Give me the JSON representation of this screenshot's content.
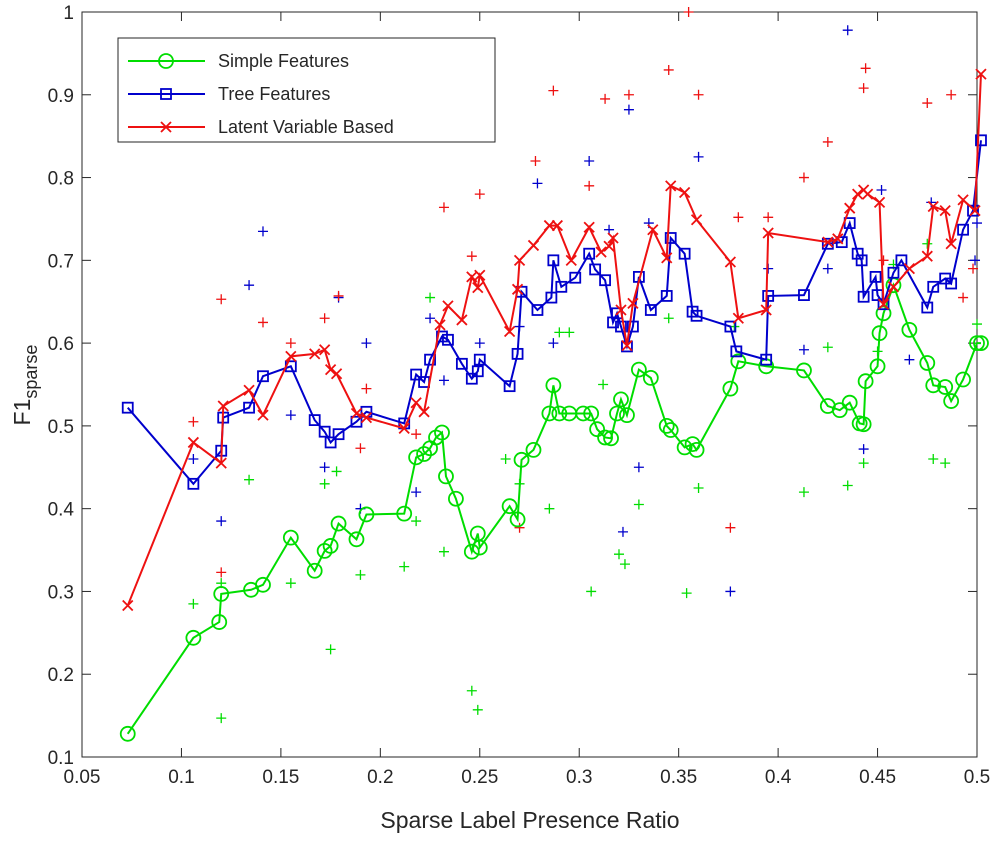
{
  "chart_data": {
    "type": "line",
    "xlabel": "Sparse Label Presence Ratio",
    "ylabel": {
      "text": "F1",
      "subscript": "sparse"
    },
    "xlim": [
      0.05,
      0.5
    ],
    "ylim": [
      0.1,
      1
    ],
    "xticks": [
      0.05,
      0.1,
      0.15,
      0.2,
      0.25,
      0.3,
      0.35,
      0.4,
      0.45,
      0.5
    ],
    "yticks": [
      0.1,
      0.2,
      0.3,
      0.4,
      0.5,
      0.6,
      0.7,
      0.8,
      0.9,
      1
    ],
    "legend": "top-left",
    "series": [
      {
        "name": "Simple Features",
        "color": "#00dd00",
        "marker": "circle",
        "x": [
          0.073,
          0.106,
          0.119,
          0.12,
          0.135,
          0.141,
          0.155,
          0.167,
          0.172,
          0.175,
          0.179,
          0.188,
          0.193,
          0.212,
          0.218,
          0.222,
          0.225,
          0.228,
          0.231,
          0.233,
          0.238,
          0.246,
          0.249,
          0.25,
          0.265,
          0.269,
          0.271,
          0.277,
          0.285,
          0.287,
          0.29,
          0.295,
          0.302,
          0.306,
          0.309,
          0.313,
          0.316,
          0.319,
          0.321,
          0.324,
          0.33,
          0.336,
          0.344,
          0.346,
          0.353,
          0.357,
          0.359,
          0.376,
          0.38,
          0.394,
          0.413,
          0.425,
          0.431,
          0.436,
          0.441,
          0.443,
          0.444,
          0.45,
          0.451,
          0.453,
          0.458,
          0.466,
          0.475,
          0.478,
          0.484,
          0.487,
          0.493,
          0.5,
          0.502
        ],
        "values": [
          0.128,
          0.244,
          0.263,
          0.297,
          0.302,
          0.308,
          0.365,
          0.325,
          0.349,
          0.355,
          0.382,
          0.363,
          0.393,
          0.394,
          0.462,
          0.466,
          0.473,
          0.486,
          0.492,
          0.439,
          0.412,
          0.348,
          0.37,
          0.353,
          0.403,
          0.387,
          0.459,
          0.471,
          0.515,
          0.549,
          0.515,
          0.515,
          0.515,
          0.515,
          0.496,
          0.486,
          0.485,
          0.515,
          0.532,
          0.513,
          0.568,
          0.558,
          0.5,
          0.495,
          0.474,
          0.478,
          0.471,
          0.545,
          0.578,
          0.572,
          0.567,
          0.524,
          0.519,
          0.528,
          0.503,
          0.502,
          0.554,
          0.572,
          0.612,
          0.636,
          0.67,
          0.616,
          0.576,
          0.549,
          0.547,
          0.53,
          0.556,
          0.6,
          0.6
        ]
      },
      {
        "name": "Tree Features",
        "color": "#0000cc",
        "marker": "square",
        "x": [
          0.073,
          0.106,
          0.12,
          0.121,
          0.134,
          0.141,
          0.155,
          0.167,
          0.172,
          0.175,
          0.179,
          0.188,
          0.193,
          0.212,
          0.218,
          0.222,
          0.225,
          0.231,
          0.234,
          0.241,
          0.246,
          0.249,
          0.25,
          0.265,
          0.269,
          0.271,
          0.279,
          0.286,
          0.287,
          0.291,
          0.298,
          0.305,
          0.308,
          0.313,
          0.317,
          0.319,
          0.321,
          0.324,
          0.327,
          0.33,
          0.336,
          0.344,
          0.346,
          0.353,
          0.357,
          0.359,
          0.376,
          0.379,
          0.394,
          0.395,
          0.413,
          0.425,
          0.432,
          0.436,
          0.44,
          0.442,
          0.443,
          0.449,
          0.45,
          0.453,
          0.458,
          0.462,
          0.475,
          0.478,
          0.484,
          0.487,
          0.493,
          0.498,
          0.502
        ],
        "values": [
          0.522,
          0.43,
          0.47,
          0.51,
          0.522,
          0.56,
          0.572,
          0.507,
          0.493,
          0.48,
          0.49,
          0.505,
          0.517,
          0.503,
          0.562,
          0.553,
          0.58,
          0.608,
          0.604,
          0.575,
          0.557,
          0.566,
          0.58,
          0.548,
          0.587,
          0.662,
          0.64,
          0.655,
          0.7,
          0.668,
          0.679,
          0.708,
          0.689,
          0.676,
          0.625,
          0.636,
          0.62,
          0.596,
          0.62,
          0.68,
          0.64,
          0.657,
          0.727,
          0.708,
          0.638,
          0.633,
          0.62,
          0.59,
          0.58,
          0.657,
          0.658,
          0.72,
          0.722,
          0.745,
          0.708,
          0.7,
          0.656,
          0.68,
          0.658,
          0.647,
          0.685,
          0.7,
          0.643,
          0.668,
          0.678,
          0.672,
          0.737,
          0.76,
          0.845
        ]
      },
      {
        "name": "Latent Variable Based",
        "color": "#ee1111",
        "marker": "x",
        "x": [
          0.073,
          0.106,
          0.12,
          0.121,
          0.134,
          0.141,
          0.155,
          0.167,
          0.172,
          0.175,
          0.178,
          0.188,
          0.193,
          0.212,
          0.218,
          0.222,
          0.23,
          0.234,
          0.241,
          0.246,
          0.249,
          0.25,
          0.265,
          0.269,
          0.27,
          0.277,
          0.285,
          0.289,
          0.296,
          0.305,
          0.311,
          0.315,
          0.317,
          0.321,
          0.324,
          0.327,
          0.337,
          0.344,
          0.346,
          0.353,
          0.359,
          0.376,
          0.38,
          0.394,
          0.395,
          0.425,
          0.43,
          0.436,
          0.44,
          0.443,
          0.445,
          0.451,
          0.453,
          0.458,
          0.466,
          0.475,
          0.478,
          0.484,
          0.487,
          0.493,
          0.499,
          0.502
        ],
        "values": [
          0.283,
          0.48,
          0.455,
          0.524,
          0.543,
          0.513,
          0.584,
          0.587,
          0.592,
          0.568,
          0.563,
          0.515,
          0.51,
          0.497,
          0.528,
          0.517,
          0.622,
          0.645,
          0.628,
          0.68,
          0.667,
          0.682,
          0.614,
          0.665,
          0.7,
          0.718,
          0.742,
          0.742,
          0.7,
          0.74,
          0.71,
          0.717,
          0.727,
          0.64,
          0.597,
          0.648,
          0.737,
          0.703,
          0.79,
          0.782,
          0.749,
          0.698,
          0.63,
          0.64,
          0.733,
          0.722,
          0.726,
          0.763,
          0.78,
          0.785,
          0.78,
          0.77,
          0.647,
          0.668,
          0.69,
          0.705,
          0.765,
          0.76,
          0.72,
          0.773,
          0.76,
          0.925
        ]
      }
    ],
    "points": [
      {
        "color": "#00dd00",
        "x": [
          0.106,
          0.12,
          0.12,
          0.134,
          0.155,
          0.172,
          0.175,
          0.178,
          0.19,
          0.212,
          0.218,
          0.225,
          0.232,
          0.246,
          0.249,
          0.263,
          0.27,
          0.285,
          0.29,
          0.295,
          0.306,
          0.312,
          0.32,
          0.323,
          0.33,
          0.345,
          0.354,
          0.36,
          0.378,
          0.413,
          0.425,
          0.435,
          0.443,
          0.458,
          0.475,
          0.478,
          0.484,
          0.5,
          0.45
        ],
        "y": [
          0.285,
          0.147,
          0.31,
          0.435,
          0.31,
          0.43,
          0.23,
          0.445,
          0.32,
          0.33,
          0.385,
          0.655,
          0.348,
          0.18,
          0.157,
          0.46,
          0.43,
          0.4,
          0.613,
          0.613,
          0.3,
          0.55,
          0.345,
          0.333,
          0.405,
          0.63,
          0.298,
          0.425,
          0.62,
          0.42,
          0.595,
          0.428,
          0.455,
          0.695,
          0.72,
          0.46,
          0.455,
          0.623,
          0.59
        ]
      },
      {
        "color": "#0000cc",
        "x": [
          0.106,
          0.12,
          0.134,
          0.141,
          0.155,
          0.172,
          0.179,
          0.19,
          0.193,
          0.218,
          0.225,
          0.232,
          0.25,
          0.27,
          0.279,
          0.287,
          0.305,
          0.315,
          0.322,
          0.325,
          0.33,
          0.335,
          0.36,
          0.376,
          0.395,
          0.413,
          0.425,
          0.435,
          0.443,
          0.452,
          0.466,
          0.477,
          0.5,
          0.499
        ],
        "y": [
          0.46,
          0.385,
          0.67,
          0.735,
          0.513,
          0.45,
          0.655,
          0.4,
          0.6,
          0.42,
          0.63,
          0.555,
          0.6,
          0.62,
          0.793,
          0.6,
          0.82,
          0.737,
          0.372,
          0.882,
          0.45,
          0.745,
          0.825,
          0.3,
          0.69,
          0.592,
          0.69,
          0.978,
          0.472,
          0.785,
          0.58,
          0.77,
          0.745,
          0.7
        ]
      },
      {
        "color": "#ee1111",
        "x": [
          0.106,
          0.12,
          0.12,
          0.141,
          0.155,
          0.172,
          0.179,
          0.19,
          0.193,
          0.218,
          0.232,
          0.246,
          0.25,
          0.27,
          0.278,
          0.287,
          0.305,
          0.313,
          0.325,
          0.345,
          0.355,
          0.36,
          0.376,
          0.38,
          0.395,
          0.413,
          0.425,
          0.443,
          0.444,
          0.453,
          0.475,
          0.487,
          0.493,
          0.498
        ],
        "y": [
          0.505,
          0.653,
          0.323,
          0.625,
          0.6,
          0.63,
          0.657,
          0.473,
          0.545,
          0.49,
          0.764,
          0.705,
          0.78,
          0.377,
          0.82,
          0.905,
          0.79,
          0.895,
          0.9,
          0.93,
          1,
          0.9,
          0.377,
          0.752,
          0.752,
          0.8,
          0.843,
          0.908,
          0.932,
          0.7,
          0.89,
          0.9,
          0.655,
          0.69
        ]
      }
    ]
  }
}
